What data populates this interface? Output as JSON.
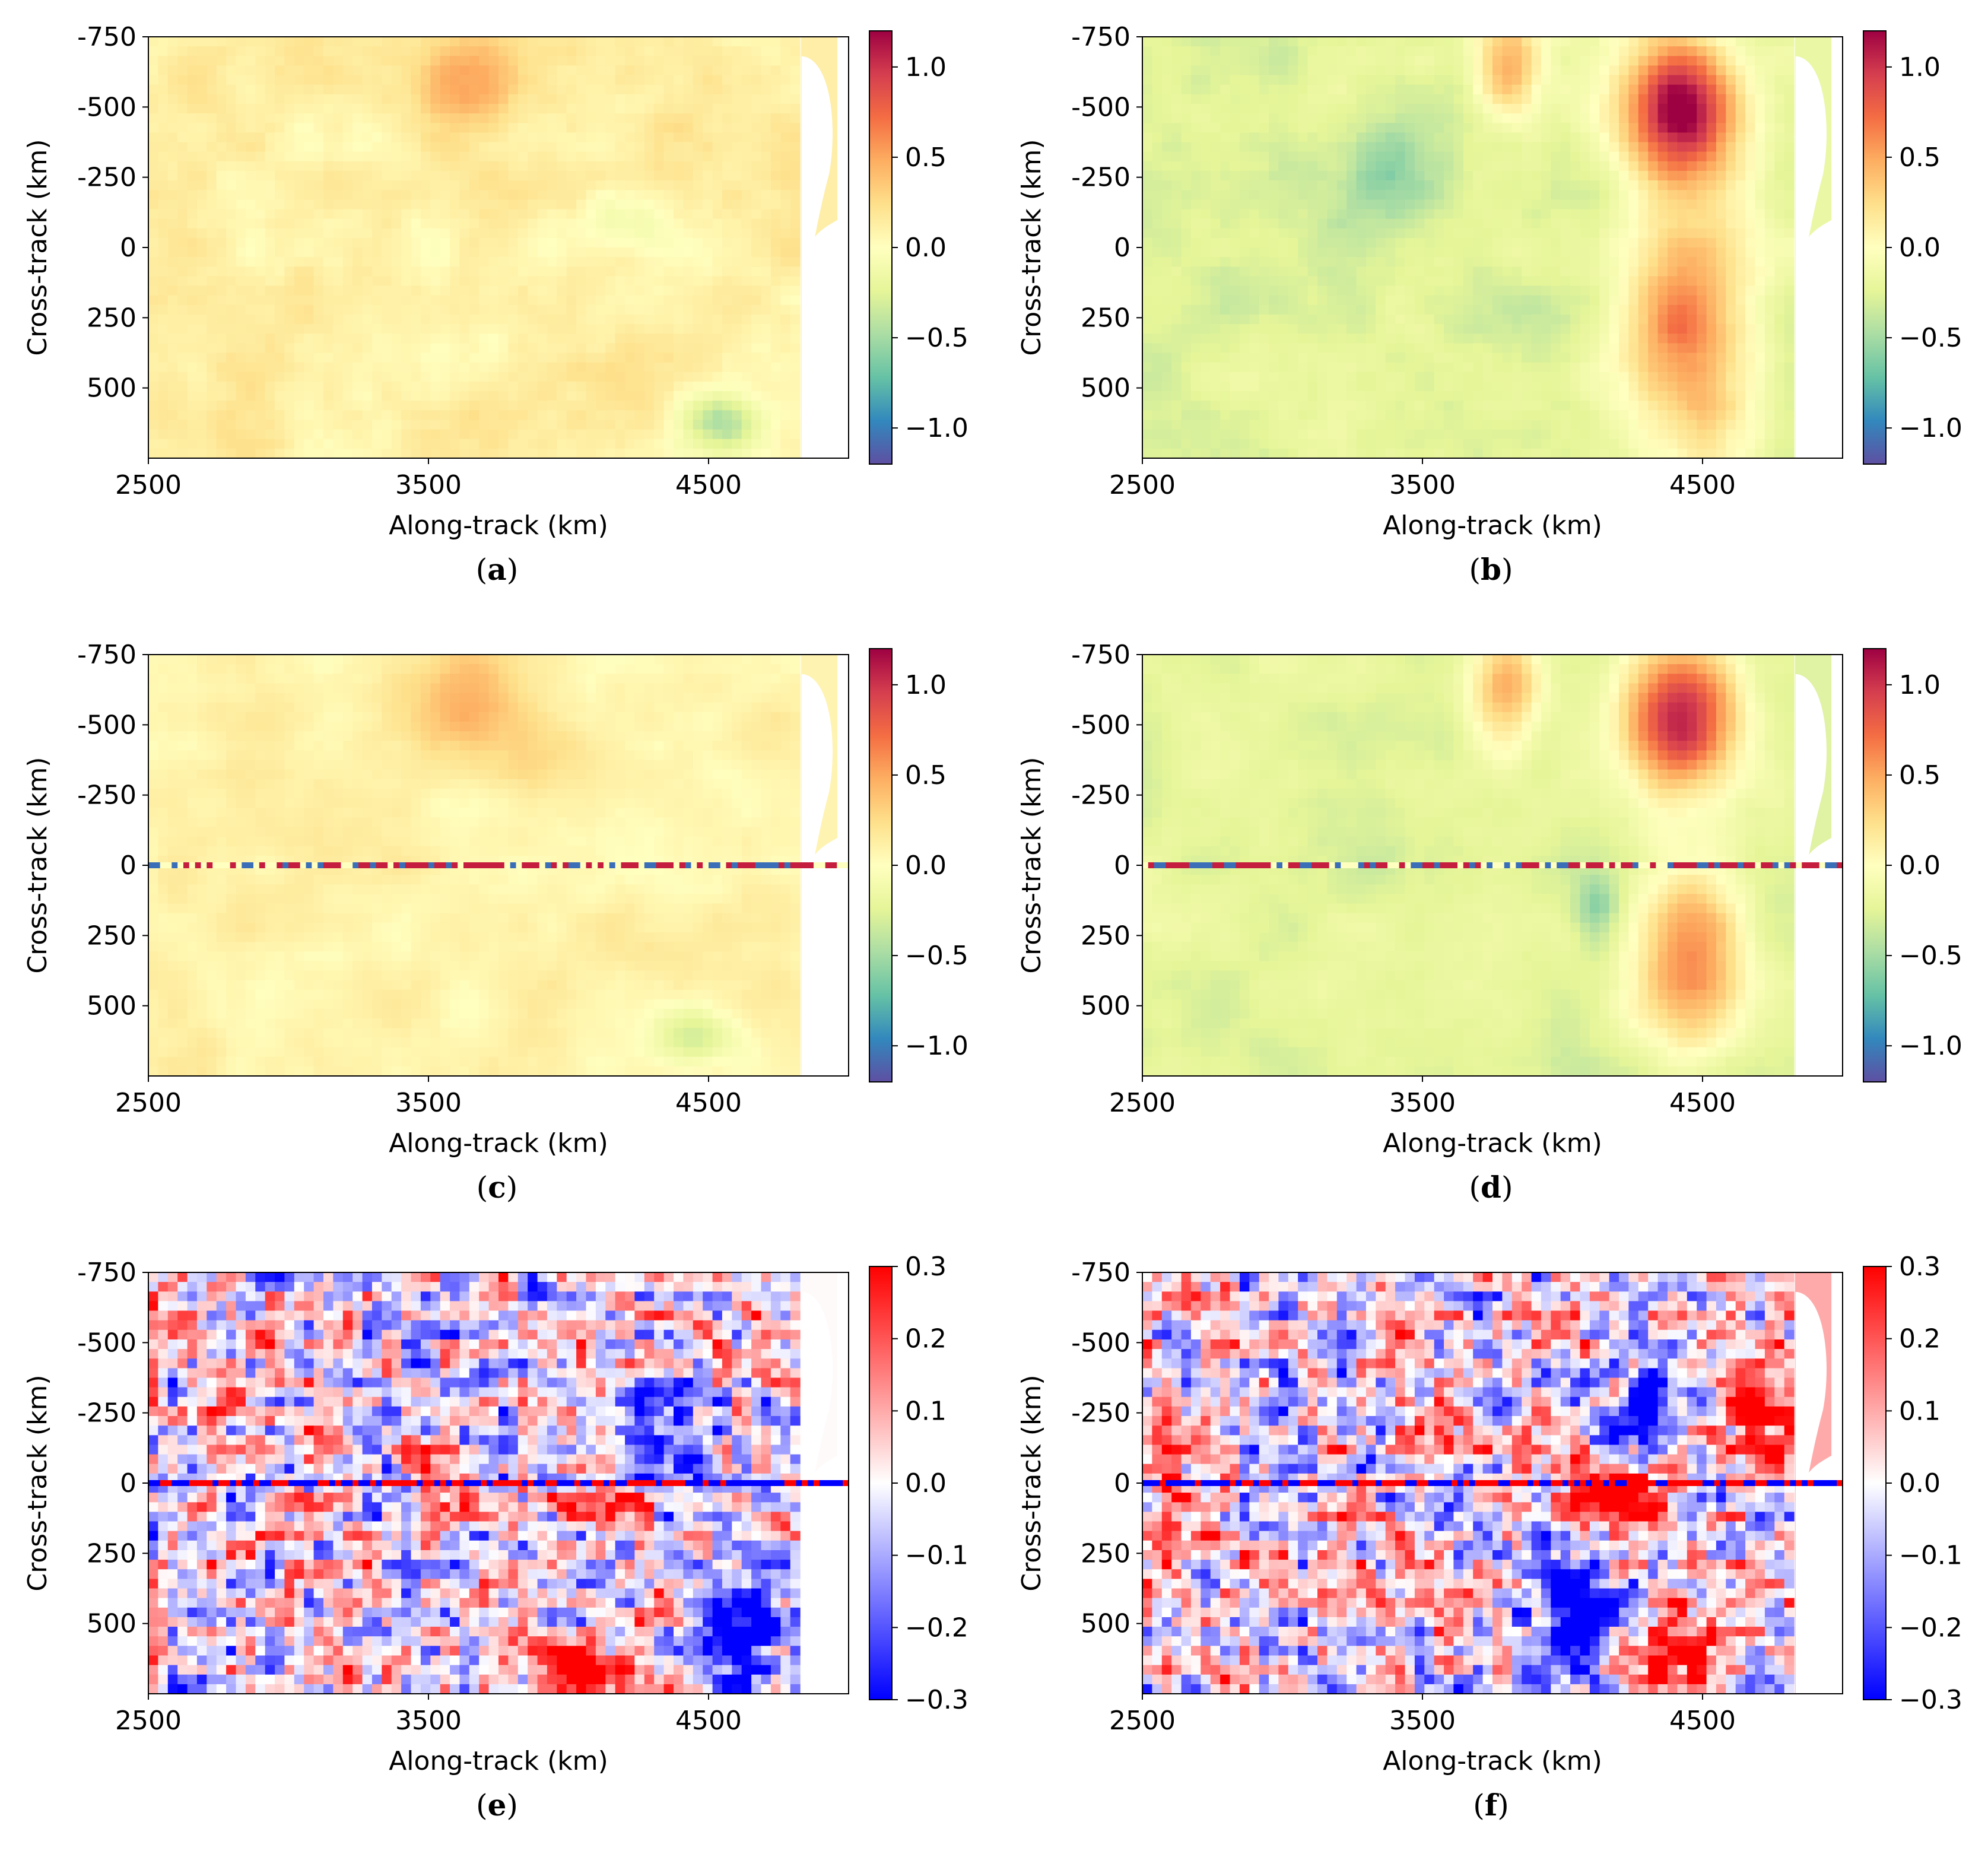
{
  "figure": {
    "panels": [
      {
        "id": "a",
        "caption_letter": "a",
        "scale": "spectral",
        "field": "smooth_a"
      },
      {
        "id": "b",
        "caption_letter": "b",
        "scale": "spectral",
        "field": "smooth_b"
      },
      {
        "id": "c",
        "caption_letter": "c",
        "scale": "spectral",
        "field": "gap_c"
      },
      {
        "id": "d",
        "caption_letter": "d",
        "scale": "spectral",
        "field": "gap_d"
      },
      {
        "id": "e",
        "caption_letter": "e",
        "scale": "diverging",
        "field": "diff_e"
      },
      {
        "id": "f",
        "caption_letter": "f",
        "scale": "diverging",
        "field": "diff_f"
      }
    ]
  },
  "chart_data": [
    {
      "id": "a",
      "type": "heatmap",
      "xlabel": "Along-track (km)",
      "ylabel": "Cross-track (km)",
      "x_ticks": [
        "2500",
        "3500",
        "4500"
      ],
      "x_tick_values": [
        2500,
        3500,
        4500
      ],
      "y_ticks": [
        "-750",
        "-500",
        "-250",
        "0",
        "250",
        "500"
      ],
      "y_tick_values": [
        -750,
        -500,
        -250,
        0,
        250,
        500
      ],
      "xlim": [
        2500,
        5000
      ],
      "ylim": [
        -750,
        750
      ],
      "colorbar": {
        "min": -1.2,
        "max": 1.2,
        "ticks": [
          "1.0",
          "0.5",
          "0.0",
          "−0.5",
          "−1.0"
        ],
        "tick_values": [
          1.0,
          0.5,
          0.0,
          -0.5,
          -1.0
        ],
        "colors": [
          "#5e4fa2",
          "#3288bd",
          "#66c2a5",
          "#abdda4",
          "#e6f598",
          "#ffffbf",
          "#fee08b",
          "#fdae61",
          "#f46d43",
          "#d53e4f",
          "#9e0142"
        ]
      },
      "caption": "(a)"
    },
    {
      "id": "b",
      "type": "heatmap",
      "xlabel": "Along-track (km)",
      "ylabel": "Cross-track (km)",
      "x_ticks": [
        "2500",
        "3500",
        "4500"
      ],
      "x_tick_values": [
        2500,
        3500,
        4500
      ],
      "y_ticks": [
        "-750",
        "-500",
        "-250",
        "0",
        "250",
        "500"
      ],
      "y_tick_values": [
        -750,
        -500,
        -250,
        0,
        250,
        500
      ],
      "xlim": [
        2500,
        5000
      ],
      "ylim": [
        -750,
        750
      ],
      "colorbar": {
        "min": -1.2,
        "max": 1.2,
        "ticks": [
          "1.0",
          "0.5",
          "0.0",
          "−0.5",
          "−1.0"
        ],
        "tick_values": [
          1.0,
          0.5,
          0.0,
          -0.5,
          -1.0
        ],
        "colors": [
          "#5e4fa2",
          "#3288bd",
          "#66c2a5",
          "#abdda4",
          "#e6f598",
          "#ffffbf",
          "#fee08b",
          "#fdae61",
          "#f46d43",
          "#d53e4f",
          "#9e0142"
        ]
      },
      "caption": "(b)"
    },
    {
      "id": "c",
      "type": "heatmap",
      "xlabel": "Along-track (km)",
      "ylabel": "Cross-track (km)",
      "x_ticks": [
        "2500",
        "3500",
        "4500"
      ],
      "x_tick_values": [
        2500,
        3500,
        4500
      ],
      "y_ticks": [
        "-750",
        "-500",
        "-250",
        "0",
        "250",
        "500"
      ],
      "y_tick_values": [
        -750,
        -500,
        -250,
        0,
        250,
        500
      ],
      "xlim": [
        2500,
        5000
      ],
      "ylim": [
        -750,
        750
      ],
      "colorbar": {
        "min": -1.2,
        "max": 1.2,
        "ticks": [
          "1.0",
          "0.5",
          "0.0",
          "−0.5",
          "−1.0"
        ],
        "tick_values": [
          1.0,
          0.5,
          0.0,
          -0.5,
          -1.0
        ],
        "colors": [
          "#5e4fa2",
          "#3288bd",
          "#66c2a5",
          "#abdda4",
          "#e6f598",
          "#ffffbf",
          "#fee08b",
          "#fdae61",
          "#f46d43",
          "#d53e4f",
          "#9e0142"
        ]
      },
      "caption": "(c)"
    },
    {
      "id": "d",
      "type": "heatmap",
      "xlabel": "Along-track (km)",
      "ylabel": "Cross-track (km)",
      "x_ticks": [
        "2500",
        "3500",
        "4500"
      ],
      "x_tick_values": [
        2500,
        3500,
        4500
      ],
      "y_ticks": [
        "-750",
        "-500",
        "-250",
        "0",
        "250",
        "500"
      ],
      "y_tick_values": [
        -750,
        -500,
        -250,
        0,
        250,
        500
      ],
      "xlim": [
        2500,
        5000
      ],
      "ylim": [
        -750,
        750
      ],
      "colorbar": {
        "min": -1.2,
        "max": 1.2,
        "ticks": [
          "1.0",
          "0.5",
          "0.0",
          "−0.5",
          "−1.0"
        ],
        "tick_values": [
          1.0,
          0.5,
          0.0,
          -0.5,
          -1.0
        ],
        "colors": [
          "#5e4fa2",
          "#3288bd",
          "#66c2a5",
          "#abdda4",
          "#e6f598",
          "#ffffbf",
          "#fee08b",
          "#fdae61",
          "#f46d43",
          "#d53e4f",
          "#9e0142"
        ]
      },
      "caption": "(d)"
    },
    {
      "id": "e",
      "type": "heatmap",
      "xlabel": "Along-track (km)",
      "ylabel": "Cross-track (km)",
      "x_ticks": [
        "2500",
        "3500",
        "4500"
      ],
      "x_tick_values": [
        2500,
        3500,
        4500
      ],
      "y_ticks": [
        "-750",
        "-500",
        "-250",
        "0",
        "250",
        "500"
      ],
      "y_tick_values": [
        -750,
        -500,
        -250,
        0,
        250,
        500
      ],
      "xlim": [
        2500,
        5000
      ],
      "ylim": [
        -750,
        750
      ],
      "colorbar": {
        "min": -0.3,
        "max": 0.3,
        "ticks": [
          "0.3",
          "0.2",
          "0.1",
          "0.0",
          "−0.1",
          "−0.2",
          "−0.3"
        ],
        "tick_values": [
          0.3,
          0.2,
          0.1,
          0.0,
          -0.1,
          -0.2,
          -0.3
        ],
        "colors": [
          "#0000ff",
          "#ffffff",
          "#ff0000"
        ]
      },
      "caption": "(e)"
    },
    {
      "id": "f",
      "type": "heatmap",
      "xlabel": "Along-track (km)",
      "ylabel": "Cross-track (km)",
      "x_ticks": [
        "2500",
        "3500",
        "4500"
      ],
      "x_tick_values": [
        2500,
        3500,
        4500
      ],
      "y_ticks": [
        "-750",
        "-500",
        "-250",
        "0",
        "250",
        "500"
      ],
      "y_tick_values": [
        -750,
        -500,
        -250,
        0,
        250,
        500
      ],
      "xlim": [
        2500,
        5000
      ],
      "ylim": [
        -750,
        750
      ],
      "colorbar": {
        "min": -0.3,
        "max": 0.3,
        "ticks": [
          "0.3",
          "0.2",
          "0.1",
          "0.0",
          "−0.1",
          "−0.2",
          "−0.3"
        ],
        "tick_values": [
          0.3,
          0.2,
          0.1,
          0.0,
          -0.1,
          -0.2,
          -0.3
        ],
        "colors": [
          "#0000ff",
          "#ffffff",
          "#ff0000"
        ]
      },
      "caption": "(f)"
    }
  ]
}
